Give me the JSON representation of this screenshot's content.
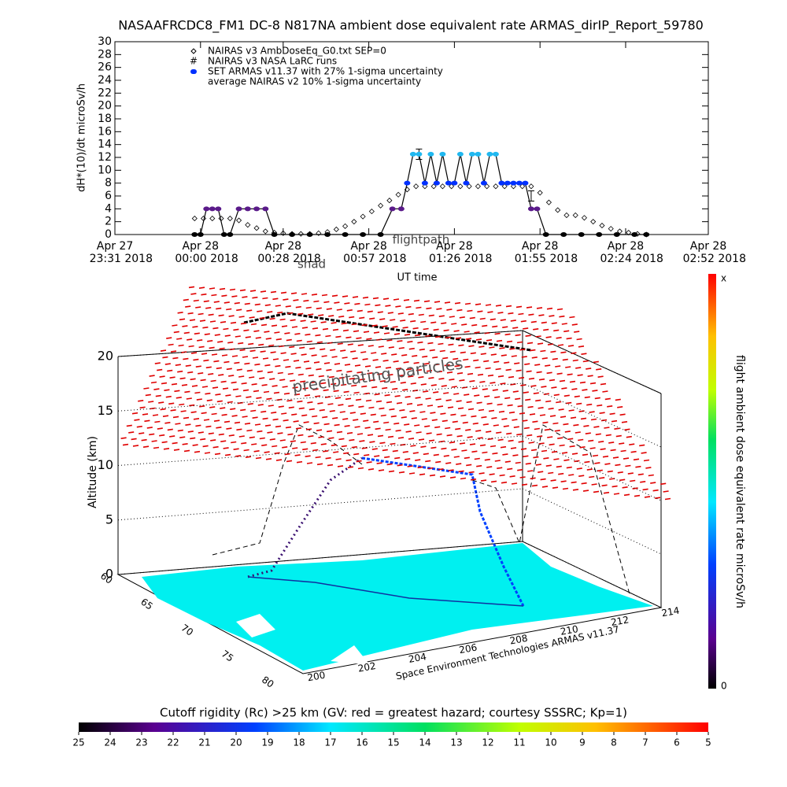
{
  "chart_data": [
    {
      "type": "scatter",
      "title": "NASAAFRCDC8_FM1 DC-8   N817NA ambient dose equivalent rate ARMAS_dirIP_Report_59780",
      "y_label": "dH*(10)/dt microSv/h",
      "x_label": "UT time",
      "annotations": [
        "flightpath",
        "shad"
      ],
      "xlim": [
        0,
        201
      ],
      "xticks": [
        {
          "value": 0,
          "label": [
            "Apr 27",
            "23:31 2018"
          ]
        },
        {
          "value": 29,
          "label": [
            "Apr 28",
            "00:00 2018"
          ]
        },
        {
          "value": 57,
          "label": [
            "Apr 28",
            "00:28 2018"
          ]
        },
        {
          "value": 86,
          "label": [
            "Apr 28",
            "00:57 2018"
          ]
        },
        {
          "value": 115,
          "label": [
            "Apr 28",
            "01:26 2018"
          ]
        },
        {
          "value": 144,
          "label": [
            "Apr 28",
            "01:55 2018"
          ]
        },
        {
          "value": 173,
          "label": [
            "Apr 28",
            "02:24 2018"
          ]
        },
        {
          "value": 201,
          "label": [
            "Apr 28",
            "02:52 2018"
          ]
        }
      ],
      "ylim": [
        0,
        30
      ],
      "yticks": [
        0,
        2,
        4,
        6,
        8,
        10,
        12,
        14,
        16,
        18,
        20,
        22,
        24,
        26,
        28,
        30
      ],
      "series": [
        {
          "name": "NAIRAS v3 AmbDoseEq_G0.txt SEP=0",
          "marker": "diamond",
          "color": "#000000",
          "x": [
            27,
            30,
            33,
            36,
            39,
            42,
            45,
            48,
            51,
            54,
            57,
            60,
            63,
            66,
            69,
            72,
            75,
            78,
            81,
            84,
            87,
            90,
            93,
            96,
            99,
            102,
            105,
            108,
            111,
            114,
            117,
            120,
            123,
            126,
            129,
            132,
            135,
            138,
            141,
            144,
            147,
            150,
            153,
            156,
            159,
            162,
            165,
            168,
            171,
            174,
            177,
            180
          ],
          "values": [
            2.5,
            2.5,
            2.5,
            2.5,
            2.5,
            2.2,
            1.5,
            1.0,
            0.5,
            0.3,
            0.2,
            0.1,
            0.1,
            0.1,
            0.2,
            0.4,
            0.8,
            1.3,
            2.0,
            2.8,
            3.6,
            4.5,
            5.3,
            6.2,
            7.0,
            7.5,
            7.5,
            7.5,
            7.5,
            7.5,
            7.5,
            7.5,
            7.5,
            7.5,
            7.5,
            7.5,
            7.5,
            7.5,
            7.5,
            6.5,
            5.0,
            3.8,
            3.0,
            3.0,
            2.6,
            2.0,
            1.4,
            0.9,
            0.5,
            0.3,
            0.1,
            0
          ]
        },
        {
          "name": "NAIRAS v3 NASA LaRC runs",
          "marker": "hash",
          "color": "#000000",
          "x": [
            103,
            141
          ],
          "values": [
            12.5,
            6
          ],
          "errors": [
            0.8,
            0.8
          ]
        },
        {
          "name": "SET ARMAS v11.37 with 27% 1-sigma uncertainty",
          "marker": "dot",
          "color": "#0030ff",
          "x": [
            27,
            29,
            31,
            33,
            35,
            37,
            39,
            42,
            45,
            48,
            51,
            54,
            60,
            66,
            72,
            78,
            84,
            90,
            94,
            97,
            99,
            101,
            103,
            105,
            107,
            109,
            111,
            113,
            115,
            117,
            119,
            121,
            123,
            125,
            127,
            129,
            131,
            133,
            135,
            137,
            139,
            141,
            143,
            146,
            152,
            158,
            164,
            170,
            176,
            180
          ],
          "values": [
            0,
            0,
            4,
            4,
            4,
            0,
            0,
            4,
            4,
            4,
            4,
            0,
            0,
            0,
            0,
            0,
            0,
            0,
            4,
            4,
            8,
            12.5,
            12.5,
            8,
            12.5,
            8,
            12.5,
            8,
            8,
            12.5,
            8,
            12.5,
            12.5,
            8,
            12.5,
            12.5,
            8,
            8,
            8,
            8,
            8,
            4,
            4,
            0,
            0,
            0,
            0,
            0,
            0,
            0
          ],
          "colormap": [
            {
              "value": 0,
              "color": "#000000"
            },
            {
              "value": 4,
              "color": "#5a1a8a"
            },
            {
              "value": 8,
              "color": "#0030ff"
            },
            {
              "value": 12.5,
              "color": "#20b8f0"
            }
          ]
        },
        {
          "name": "average NAIRAS v2 10% 1-sigma uncertainty",
          "marker": "none",
          "color": "#000000"
        }
      ]
    },
    {
      "type": "surface3d",
      "annotations": [
        "precipitating particles"
      ],
      "z_label": "Altitude (km)",
      "zlim": [
        0,
        20
      ],
      "zticks": [
        0,
        5,
        10,
        15,
        20
      ],
      "xticks": [
        200,
        202,
        204,
        206,
        208,
        210,
        212,
        214
      ],
      "yticks": [
        60,
        65,
        70,
        75,
        80
      ],
      "credit": "Space Environment Technologies ARMAS v11.37",
      "colorbar_label": "flight ambient dose equivalent rate microSv/h",
      "colorbar_ends": [
        "x",
        "0"
      ],
      "rigidity_title": "Cutoff rigidity (Rc) >25 km (GV: red = greatest hazard; courtesy SSSRC; Kp=1)",
      "rigidity_ticks": [
        25,
        24,
        23,
        22,
        21,
        20,
        19,
        18,
        17,
        16,
        15,
        14,
        13,
        12,
        11,
        10,
        9,
        8,
        7,
        6,
        5
      ]
    }
  ]
}
